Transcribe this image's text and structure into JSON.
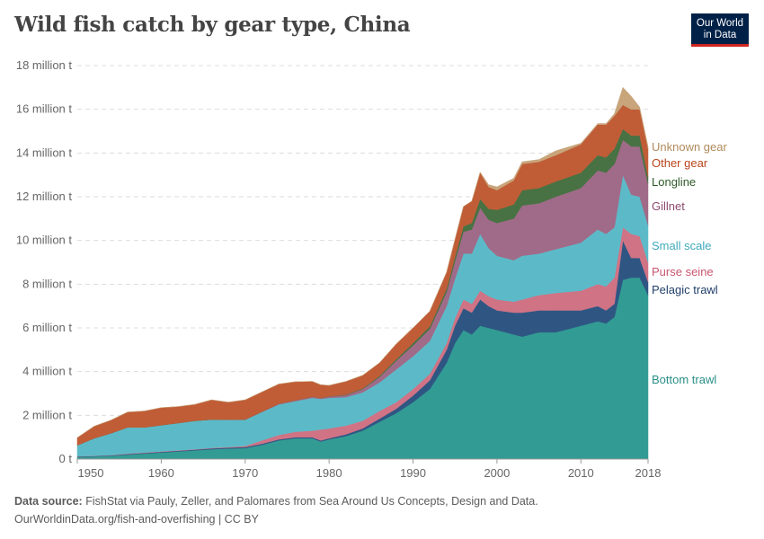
{
  "title": "Wild fish catch by gear type, China",
  "logo": {
    "line1": "Our World",
    "line2": "in Data",
    "bg_color": "#002147",
    "accent_color": "#ce261e"
  },
  "footer": {
    "source_label": "Data source:",
    "source_text": "FishStat via Pauly, Zeller, and Palomares from Sea Around Us Concepts, Design and Data.",
    "url_license": "OurWorldinData.org/fish-and-overfishing | CC BY"
  },
  "chart_data": {
    "type": "area",
    "stacked": true,
    "title": "Wild fish catch by gear type, China",
    "xlim": [
      1950,
      2018
    ],
    "ylim": [
      0,
      18
    ],
    "y_unit": "million t",
    "grid": "horizontal dashed",
    "legend": "right (inline labels)",
    "x_ticks": [
      "1950",
      "1960",
      "1970",
      "1980",
      "1990",
      "2000",
      "2010",
      "2018"
    ],
    "y_ticks": [
      "0 t",
      "2 million t",
      "4 million t",
      "6 million t",
      "8 million t",
      "10 million t",
      "12 million t",
      "14 million t",
      "16 million t",
      "18 million t"
    ],
    "x": [
      1950,
      1952,
      1954,
      1956,
      1958,
      1960,
      1962,
      1964,
      1966,
      1968,
      1970,
      1972,
      1974,
      1976,
      1978,
      1979,
      1980,
      1982,
      1984,
      1986,
      1988,
      1990,
      1992,
      1994,
      1995,
      1996,
      1997,
      1998,
      1999,
      2000,
      2002,
      2003,
      2005,
      2007,
      2010,
      2012,
      2013,
      2014,
      2015,
      2016,
      2017,
      2018
    ],
    "series": [
      {
        "name": "Bottom trawl",
        "color": "#329c94",
        "label_color": "#2a8f87",
        "values": [
          0.1,
          0.12,
          0.15,
          0.2,
          0.25,
          0.3,
          0.35,
          0.4,
          0.45,
          0.48,
          0.5,
          0.65,
          0.85,
          0.95,
          0.95,
          0.8,
          0.9,
          1.05,
          1.3,
          1.7,
          2.1,
          2.6,
          3.2,
          4.4,
          5.3,
          5.9,
          5.7,
          6.1,
          6.0,
          5.9,
          5.7,
          5.6,
          5.8,
          5.8,
          6.1,
          6.3,
          6.2,
          6.5,
          8.2,
          8.3,
          8.3,
          7.5
        ]
      },
      {
        "name": "Pelagic trawl",
        "color": "#2f5683",
        "label_color": "#21406a",
        "values": [
          0.02,
          0.02,
          0.02,
          0.03,
          0.03,
          0.03,
          0.03,
          0.03,
          0.04,
          0.04,
          0.05,
          0.05,
          0.05,
          0.05,
          0.05,
          0.05,
          0.05,
          0.08,
          0.1,
          0.15,
          0.2,
          0.3,
          0.4,
          0.6,
          0.8,
          1.0,
          1.0,
          1.2,
          1.0,
          0.9,
          1.0,
          1.1,
          1.0,
          1.0,
          0.7,
          0.7,
          0.6,
          0.6,
          1.8,
          0.9,
          0.9,
          0.6
        ]
      },
      {
        "name": "Purse seine",
        "color": "#d07385",
        "label_color": "#c9566f",
        "values": [
          0.01,
          0.01,
          0.01,
          0.02,
          0.02,
          0.02,
          0.02,
          0.02,
          0.02,
          0.03,
          0.05,
          0.15,
          0.2,
          0.25,
          0.3,
          0.5,
          0.45,
          0.4,
          0.35,
          0.35,
          0.3,
          0.3,
          0.3,
          0.3,
          0.35,
          0.4,
          0.4,
          0.4,
          0.45,
          0.5,
          0.5,
          0.6,
          0.7,
          0.8,
          0.9,
          1.0,
          1.1,
          1.2,
          0.6,
          1.1,
          1.0,
          0.9
        ]
      },
      {
        "name": "Small scale",
        "color": "#5cbac8",
        "label_color": "#3eaabb",
        "values": [
          0.5,
          0.8,
          1.0,
          1.2,
          1.15,
          1.2,
          1.25,
          1.3,
          1.3,
          1.25,
          1.2,
          1.3,
          1.4,
          1.4,
          1.5,
          1.4,
          1.4,
          1.3,
          1.3,
          1.3,
          1.5,
          1.5,
          1.5,
          1.7,
          1.8,
          2.1,
          2.3,
          2.6,
          2.2,
          2.0,
          1.9,
          2.0,
          1.9,
          2.0,
          2.2,
          2.5,
          2.4,
          2.3,
          2.4,
          1.8,
          1.8,
          1.7
        ]
      },
      {
        "name": "Gillnet",
        "color": "#a06b88",
        "label_color": "#8c4a6f",
        "values": [
          0,
          0,
          0,
          0,
          0,
          0,
          0,
          0,
          0,
          0,
          0.01,
          0.02,
          0.03,
          0.04,
          0.05,
          0.05,
          0.06,
          0.1,
          0.15,
          0.25,
          0.4,
          0.5,
          0.55,
          0.65,
          0.8,
          1.0,
          1.1,
          1.2,
          1.3,
          1.5,
          1.9,
          2.3,
          2.3,
          2.4,
          2.5,
          2.7,
          2.8,
          2.9,
          1.6,
          2.2,
          2.3,
          1.9
        ]
      },
      {
        "name": "Longline",
        "color": "#487243",
        "label_color": "#2d5a27",
        "values": [
          0,
          0,
          0,
          0,
          0,
          0,
          0,
          0,
          0,
          0,
          0,
          0,
          0,
          0,
          0,
          0,
          0.01,
          0.02,
          0.03,
          0.05,
          0.07,
          0.1,
          0.12,
          0.15,
          0.2,
          0.25,
          0.3,
          0.4,
          0.5,
          0.6,
          0.65,
          0.7,
          0.7,
          0.7,
          0.7,
          0.7,
          0.7,
          0.7,
          0.5,
          0.5,
          0.5,
          0.3
        ]
      },
      {
        "name": "Other gear",
        "color": "#c05d37",
        "label_color": "#b8441c",
        "values": [
          0.35,
          0.55,
          0.6,
          0.7,
          0.75,
          0.8,
          0.75,
          0.75,
          0.9,
          0.8,
          0.9,
          0.9,
          0.9,
          0.85,
          0.7,
          0.6,
          0.5,
          0.6,
          0.6,
          0.6,
          0.7,
          0.7,
          0.7,
          0.75,
          0.8,
          0.9,
          1.0,
          1.2,
          1.0,
          0.9,
          1.1,
          1.2,
          1.2,
          1.2,
          1.3,
          1.4,
          1.5,
          1.5,
          1.1,
          1.2,
          1.2,
          1.3
        ]
      },
      {
        "name": "Unknown gear",
        "color": "#c8a57b",
        "label_color": "#b08a5c",
        "values": [
          0,
          0,
          0,
          0,
          0,
          0,
          0,
          0,
          0,
          0,
          0,
          0,
          0,
          0,
          0,
          0,
          0,
          0,
          0,
          0,
          0,
          0,
          0,
          0,
          0,
          0,
          0,
          0.03,
          0.1,
          0.15,
          0.1,
          0.1,
          0.1,
          0.2,
          0.05,
          0.05,
          0.05,
          0.1,
          0.8,
          0.6,
          0.1,
          0.1
        ]
      }
    ]
  }
}
